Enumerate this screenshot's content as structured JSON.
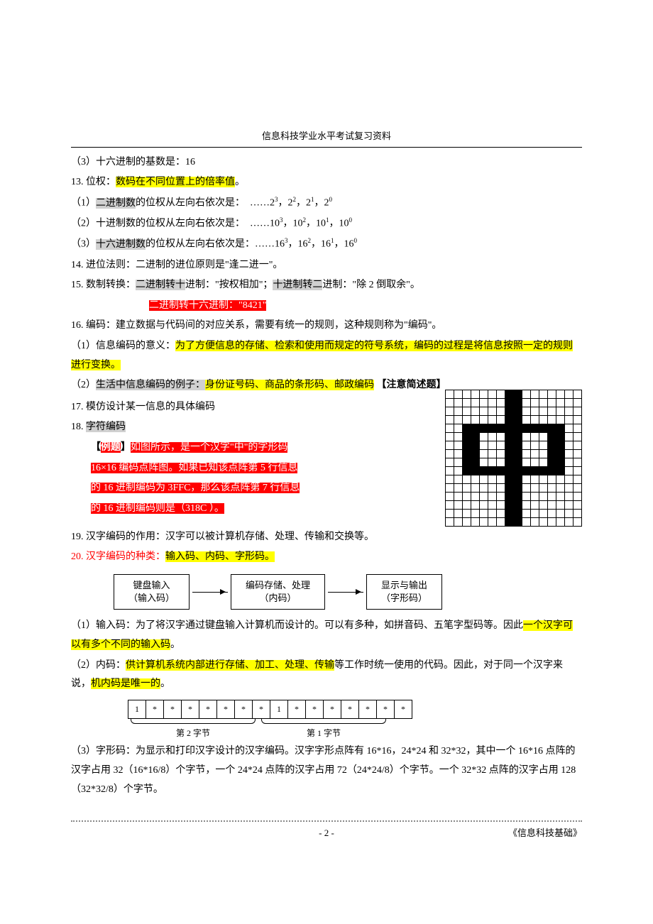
{
  "header": {
    "title": "信息科技学业水平考试复习资料"
  },
  "lines": {
    "l1": "（3）十六进制的基数是：16",
    "l2a": "13. 位权：",
    "l2b": "数码在不同位置上的倍率值",
    "l2c": "。",
    "l3a": "（1）",
    "l3b": "二进制数",
    "l3c": "的位权从左向右依次是：　……2",
    "l3d": "，2",
    "l3e": "，2",
    "l3f": "，2",
    "l4a": "（2）十进制数的位权从左向右依次是：　……10",
    "l4b": "，10",
    "l4c": "，10",
    "l4d": "，10",
    "l5a": "（3）",
    "l5b": "十六进制数",
    "l5c": "的位权从左向右依次是：……16",
    "l5d": "，16",
    "l5e": "，16",
    "l5f": "，16",
    "l6": "14. 进位法则：二进制的进位原则是\"逢二进一\"。",
    "l7a": "15. 数制转换：",
    "l7b": "二进制转十",
    "l7c": "进制：\"按权相加\"；",
    "l7d": "十进制转二",
    "l7e": "进制：\"除 2 倒取余\"。",
    "l8": "二进制转十六进制：\"8421\"",
    "l9": "16. 编码：建立数据与代码间的对应关系，需要有统一的规则，这种规则称为\"编码\"。",
    "l10a": "（1）信息编码的意义：",
    "l10b": "为了方便信息的存储、检索和使用而规定的符号系统，编码的过程是将信息按照一定的规则进行变换。",
    "l11a": "（2）",
    "l11b": "生活中信息编码的例子：",
    "l11c": "身份证号码、商品的条形码、邮政编码",
    "l11d": " 【注意简述题】",
    "l12": "17. 模仿设计某一信息的具体编码",
    "l13a": "18. ",
    "l13b": "字符编码",
    "l14a": "【",
    "l14b": "例题",
    "l14c": "】",
    "l14d": "如图所示，是一个汉字\"中\"的字形码",
    "l15": "16×16 编码点阵图。如果已知该点阵第 5 行信息",
    "l16": "的 16 进制编码为 3FFC，那么该点阵第 7 行信息",
    "l17": "的 16 进制编码则是（318C ）。",
    "l18": "19. 汉字编码的作用：汉字可以被计算机存储、处理、传输和交换等。",
    "l19a": "20. ",
    "l19b": "汉字编码的种类",
    "l19c": "：",
    "l19d": "输入码、内码、字形码。",
    "flow1a": "键盘输入",
    "flow1b": "（输入码）",
    "flow2a": "编码存储、处理",
    "flow2b": "（内码）",
    "flow3a": "显示与输出",
    "flow3b": "（字形码）",
    "l20a": "（1）输入码：为了将汉字通过键盘输入计算机而设计的。可以有多种，如拼音码、五笔字型码等。因此",
    "l20b": "一个汉字可以有多个不同的输入码",
    "l20c": "。",
    "l21a": "（2）内码：",
    "l21b": "供计算机系统内部进行存储、加工、处理、传输",
    "l21c": "等工作时统一使用的代码。因此，对于同一个汉字来说，",
    "l21d": "机内码是唯一的",
    "l21e": "。",
    "byte_cells": [
      "1",
      "*",
      "*",
      "*",
      "*",
      "*",
      "*",
      "*",
      "1",
      "*",
      "*",
      "*",
      "*",
      "*",
      "*",
      "*"
    ],
    "brace1": "第 2 字节",
    "brace2": "第 1 字节",
    "l22": "（3）字形码：为显示和打印汉字设计的汉字编码。汉字字形点阵有 16*16，24*24 和 32*32，其中一个 16*16 点阵的汉字占用 32（16*16/8）个字节，一个 24*24 点阵的汉字占用 72（24*24/8）个字节。一个 32*32 点阵的汉字占用 128（32*32/8）个字节。"
  },
  "exp": {
    "e3": "3",
    "e2": "2",
    "e1": "1",
    "e0": "0"
  },
  "bitmap": {
    "rows": [
      "0000000110000000",
      "0000000110000000",
      "0000000110000000",
      "0000000110000000",
      "0011111111111100",
      "0011000110001100",
      "0011000110001100",
      "0011000110001100",
      "0011000110001100",
      "0011111111111100",
      "0000000110000000",
      "0000000110000000",
      "0000000110000000",
      "0000000110000000",
      "0000000110000000",
      "0000000110000000"
    ]
  },
  "footer": {
    "page": "- 2 -",
    "book": "《信息科技基础》"
  },
  "colors": {
    "yellow": "#ffff00",
    "red_bg": "#ff0000",
    "red_text": "#ff0000",
    "gray_bg": "#d0d0d0"
  }
}
